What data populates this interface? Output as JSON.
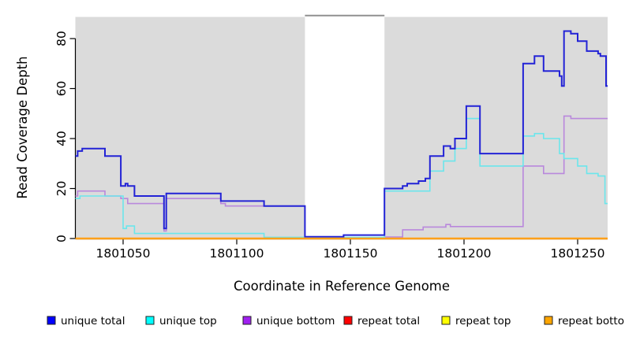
{
  "chart_data": {
    "type": "line",
    "step": true,
    "title": "",
    "xlabel": "Coordinate in Reference Genome",
    "ylabel": "Read Coverage Depth",
    "x_ticks": [
      1801050,
      1801100,
      1801150,
      1801200,
      1801250
    ],
    "x_tick_labels": [
      "1801050",
      "1801100",
      "1801150",
      "1801200",
      "1801250"
    ],
    "y_ticks": [
      0,
      20,
      40,
      60,
      80
    ],
    "y_tick_labels": [
      "0",
      "20",
      "40",
      "60",
      "80"
    ],
    "xlim": [
      1801029,
      1801263.2
    ],
    "ylim": [
      0,
      89
    ],
    "grid": false,
    "legend_position": "bottom",
    "panel_bg": "#DBDBDB",
    "gap_region": {
      "x_start": 1801130,
      "x_end": 1801165,
      "fill": "#FFFFFF",
      "top_border": "#909090"
    },
    "series": [
      {
        "name": "unique bottom",
        "legend_color": "#A020F0",
        "line_color": "#B988DC",
        "line_width": 1.6,
        "points": [
          [
            1801029,
            17
          ],
          [
            1801030,
            19
          ],
          [
            1801042,
            17
          ],
          [
            1801049,
            16
          ],
          [
            1801052,
            14
          ],
          [
            1801068,
            3
          ],
          [
            1801069,
            16
          ],
          [
            1801093,
            14
          ],
          [
            1801095,
            13
          ],
          [
            1801130,
            0.3
          ],
          [
            1801165,
            0.6
          ],
          [
            1801173,
            3.5
          ],
          [
            1801182,
            4.6
          ],
          [
            1801192,
            5.6
          ],
          [
            1801194,
            4.8
          ],
          [
            1801226,
            29
          ],
          [
            1801235,
            26
          ],
          [
            1801244,
            49
          ],
          [
            1801247,
            48
          ]
        ]
      },
      {
        "name": "unique top",
        "legend_color": "#00FFFF",
        "line_color": "#6BE6EC",
        "line_width": 1.6,
        "points": [
          [
            1801029,
            16
          ],
          [
            1801031,
            17
          ],
          [
            1801050,
            4
          ],
          [
            1801051.5,
            5
          ],
          [
            1801055,
            2
          ],
          [
            1801112,
            0.5
          ],
          [
            1801165,
            19
          ],
          [
            1801185,
            27
          ],
          [
            1801191,
            31
          ],
          [
            1801196,
            36
          ],
          [
            1801201,
            48
          ],
          [
            1801207,
            29
          ],
          [
            1801226,
            41
          ],
          [
            1801231,
            42
          ],
          [
            1801235,
            40
          ],
          [
            1801242,
            34
          ],
          [
            1801244,
            32
          ],
          [
            1801250,
            29
          ],
          [
            1801254,
            26
          ],
          [
            1801259,
            25
          ],
          [
            1801262,
            14
          ]
        ]
      },
      {
        "name": "unique total",
        "legend_color": "#0000FF",
        "line_color": "#2323D6",
        "line_width": 2,
        "points": [
          [
            1801029,
            33
          ],
          [
            1801030,
            35
          ],
          [
            1801032,
            36
          ],
          [
            1801042,
            33
          ],
          [
            1801049,
            21
          ],
          [
            1801051,
            22
          ],
          [
            1801052,
            21
          ],
          [
            1801055,
            17
          ],
          [
            1801068,
            4
          ],
          [
            1801069,
            18
          ],
          [
            1801093,
            15
          ],
          [
            1801112,
            13
          ],
          [
            1801130,
            0.7
          ],
          [
            1801147,
            1.4
          ],
          [
            1801165,
            20
          ],
          [
            1801173,
            21
          ],
          [
            1801175,
            22
          ],
          [
            1801180,
            23
          ],
          [
            1801183,
            24
          ],
          [
            1801185,
            33
          ],
          [
            1801191,
            37
          ],
          [
            1801194,
            36
          ],
          [
            1801196,
            40
          ],
          [
            1801201,
            53
          ],
          [
            1801207,
            34
          ],
          [
            1801226,
            70
          ],
          [
            1801231,
            73
          ],
          [
            1801235,
            67
          ],
          [
            1801242,
            65
          ],
          [
            1801243,
            61
          ],
          [
            1801244,
            83
          ],
          [
            1801247,
            82
          ],
          [
            1801250,
            79
          ],
          [
            1801254,
            75
          ],
          [
            1801259,
            74
          ],
          [
            1801260,
            73
          ],
          [
            1801262.5,
            61
          ]
        ]
      },
      {
        "name": "repeat total",
        "legend_color": "#FF0000",
        "line_color": "#CC2222",
        "line_width": 1.6,
        "points": [
          [
            1801029,
            0
          ]
        ]
      },
      {
        "name": "repeat top",
        "legend_color": "#FFFF00",
        "line_color": "#E8E800",
        "line_width": 1.6,
        "points": [
          [
            1801029,
            0
          ]
        ]
      },
      {
        "name": "repeat bottom",
        "legend_color": "#FFA500",
        "line_color": "#FFA019",
        "line_width": 2.4,
        "points": [
          [
            1801029,
            0
          ]
        ]
      }
    ],
    "legend": [
      {
        "label": "unique total",
        "color": "#0000FF"
      },
      {
        "label": "unique top",
        "color": "#00FFFF"
      },
      {
        "label": "unique bottom",
        "color": "#A020F0"
      },
      {
        "label": "repeat total",
        "color": "#FF0000"
      },
      {
        "label": "repeat top",
        "color": "#FFFF00"
      },
      {
        "label": "repeat bottom",
        "color": "#FFA500"
      }
    ]
  }
}
